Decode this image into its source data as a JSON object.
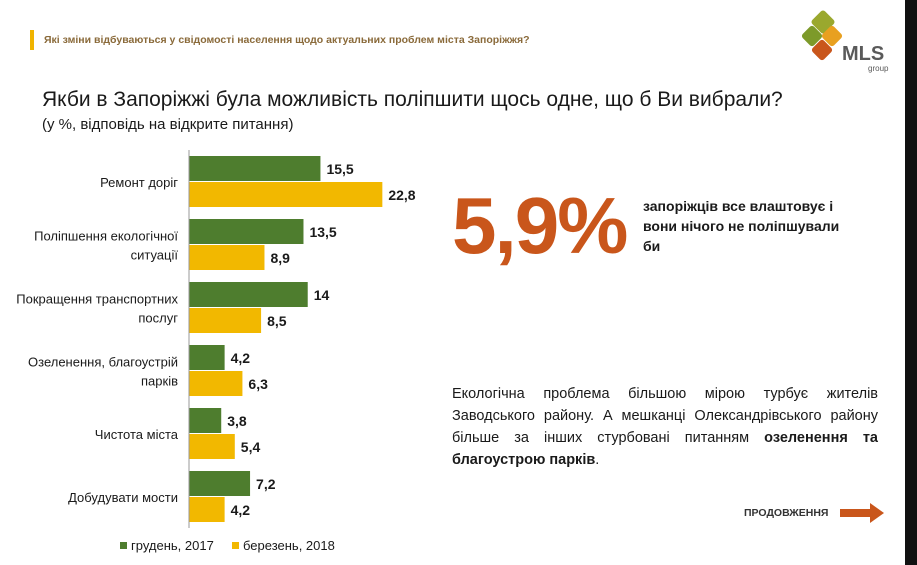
{
  "header": {
    "subtitle": "Які зміни відбуваються у свідомості населення щодо актуальних проблем міста Запоріжжя?",
    "logo_text": "MLS",
    "logo_sub": "group"
  },
  "question": {
    "title": "Якби в Запоріжжі була можливість поліпшити щось одне, що б Ви вибрали?",
    "note": "(у %, відповідь на відкрите питання)"
  },
  "chart_data": {
    "type": "bar",
    "orientation": "horizontal",
    "categories": [
      [
        "Ремонт доріг"
      ],
      [
        "Поліпшення екологічної",
        "ситуації"
      ],
      [
        "Покращення транспортних",
        "послуг"
      ],
      [
        "Озеленення, благоустрій",
        "парків"
      ],
      [
        "Чистота міста"
      ],
      [
        "Добудувати мости"
      ]
    ],
    "series": [
      {
        "name": "грудень, 2017",
        "color": "#4e7d2e",
        "values": [
          15.5,
          13.5,
          14,
          4.2,
          3.8,
          7.2
        ],
        "labels": [
          "15,5",
          "13,5",
          "14",
          "4,2",
          "3,8",
          "7,2"
        ]
      },
      {
        "name": "березень, 2018",
        "color": "#f2b800",
        "values": [
          22.8,
          8.9,
          8.5,
          6.3,
          5.4,
          4.2
        ],
        "labels": [
          "22,8",
          "8,9",
          "8,5",
          "6,3",
          "5,4",
          "4,2"
        ]
      }
    ],
    "xlim": [
      0,
      25
    ],
    "legend": "bottom"
  },
  "highlight": {
    "value": "5,9%",
    "text": "запоріжців все влаштовує і вони нічого не поліпшували би",
    "color": "#c9561b"
  },
  "commentary": {
    "text_plain": "Екологічна проблема більшою мірою турбує жителів Заводського району.  А мешканці Олександрівського району більше за інших стурбовані питанням ",
    "text_bold": "озеленення та благоустрою парків",
    "text_end": "."
  },
  "footer": {
    "continue_label": "ПРОДОВЖЕННЯ"
  }
}
